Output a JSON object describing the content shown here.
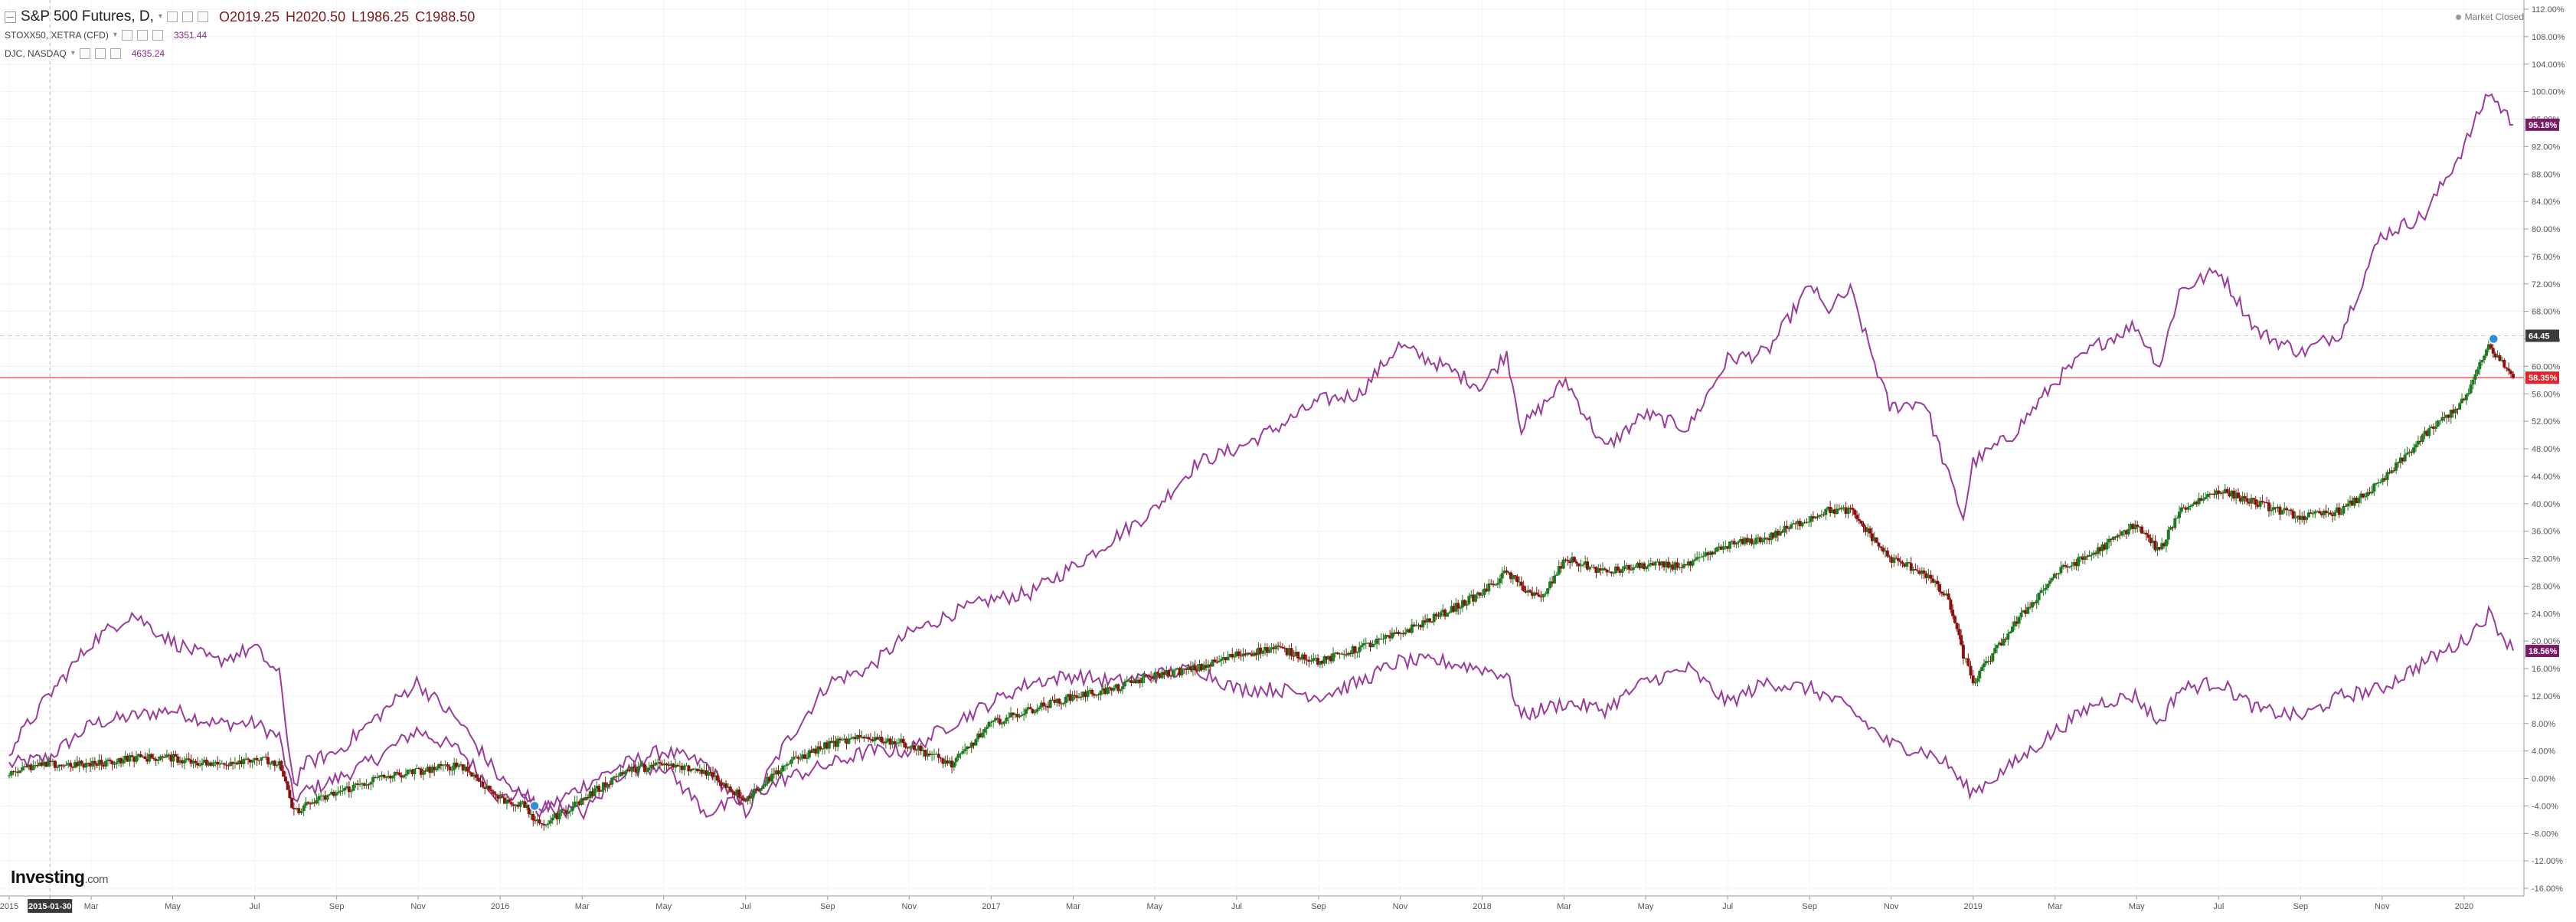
{
  "legend": {
    "main": {
      "name": "S&P 500 Futures, D,",
      "open": "O2019.25",
      "high": "H2020.50",
      "low": "L1986.25",
      "close": "C1988.50"
    },
    "series2": {
      "name": "STOXX50, XETRA (CFD)",
      "value": "3351.44"
    },
    "series3": {
      "name": "DJC, NASDAQ",
      "value": "4635.24"
    }
  },
  "market_status": "Market Closed",
  "watermark": {
    "brand": "Investing",
    "suffix": ".com"
  },
  "price_tags": {
    "high_tag": "64.45",
    "main": "58.35%",
    "upper_purple": "95.18%",
    "lower_purple": "18.56%"
  },
  "colors": {
    "up": "#1e7a1e",
    "down": "#8b1010",
    "purple": "#9a3c9a",
    "price_line": "#f28080",
    "tag_red": "#e8202a",
    "tag_purple": "#7a1a6a",
    "tag_dark": "#3a3a3a"
  },
  "chart_data": {
    "type": "line",
    "y_unit": "percent change",
    "ylim": [
      -16,
      112
    ],
    "y_ticks": [
      "112.00%",
      "108.00%",
      "104.00%",
      "100.00%",
      "96.00%",
      "92.00%",
      "88.00%",
      "84.00%",
      "80.00%",
      "76.00%",
      "72.00%",
      "68.00%",
      "64.00%",
      "60.00%",
      "56.00%",
      "52.00%",
      "48.00%",
      "44.00%",
      "40.00%",
      "36.00%",
      "32.00%",
      "28.00%",
      "24.00%",
      "20.00%",
      "16.00%",
      "12.00%",
      "8.00%",
      "4.00%",
      "0.00%",
      "-4.00%",
      "-8.00%",
      "-12.00%",
      "-16.00%"
    ],
    "x_ticks": [
      "2015",
      "2015-01-30",
      "Mar",
      "May",
      "Jul",
      "Sep",
      "Nov",
      "2016",
      "Mar",
      "May",
      "Jul",
      "Sep",
      "Nov",
      "2017",
      "Mar",
      "May",
      "Jul",
      "Sep",
      "Nov",
      "2018",
      "Mar",
      "May",
      "Jul",
      "Sep",
      "Nov",
      "2019",
      "Mar",
      "May",
      "Jul",
      "Sep",
      "Nov",
      "2020"
    ],
    "x_tick_times": [
      0.0,
      0.083,
      0.167,
      0.333,
      0.5,
      0.667,
      0.833,
      1.0,
      1.167,
      1.333,
      1.5,
      1.667,
      1.833,
      2.0,
      2.167,
      2.333,
      2.5,
      2.667,
      2.833,
      3.0,
      3.167,
      3.333,
      3.5,
      3.667,
      3.833,
      4.0,
      4.167,
      4.333,
      4.5,
      4.667,
      4.833,
      5.0
    ],
    "x_unit": "years since first tick (2015)",
    "grid": true,
    "series": [
      {
        "name": "DJC, NASDAQ",
        "kind": "line",
        "x": [
          0,
          0.08,
          0.17,
          0.25,
          0.33,
          0.42,
          0.5,
          0.55,
          0.58,
          0.6,
          0.67,
          0.75,
          0.83,
          0.92,
          1.0,
          1.05,
          1.08,
          1.17,
          1.25,
          1.33,
          1.42,
          1.5,
          1.58,
          1.67,
          1.75,
          1.83,
          1.92,
          2.0,
          2.08,
          2.17,
          2.25,
          2.33,
          2.42,
          2.5,
          2.58,
          2.67,
          2.75,
          2.83,
          2.92,
          3.0,
          3.05,
          3.08,
          3.12,
          3.17,
          3.25,
          3.33,
          3.42,
          3.5,
          3.58,
          3.67,
          3.7,
          3.75,
          3.83,
          3.9,
          3.95,
          3.98,
          4.0,
          4.08,
          4.17,
          4.25,
          4.33,
          4.38,
          4.42,
          4.5,
          4.58,
          4.67,
          4.75,
          4.83,
          4.92,
          5.0,
          5.05,
          5.1
        ],
        "y": [
          2,
          3,
          8,
          9,
          10,
          8,
          8,
          6,
          -3,
          -2,
          0,
          3,
          7,
          4,
          -3,
          -2,
          -5,
          -1,
          2,
          4,
          2,
          -5,
          5,
          14,
          16,
          21,
          24,
          26,
          27,
          31,
          35,
          39,
          46,
          48,
          51,
          55,
          56,
          63,
          60,
          57,
          62,
          51,
          54,
          58,
          48,
          53,
          51,
          61,
          62,
          72,
          68,
          71,
          54,
          55,
          44,
          38,
          46,
          50,
          58,
          63,
          66,
          60,
          71,
          74,
          65,
          62,
          65,
          79,
          82,
          92,
          100,
          95.2
        ]
      },
      {
        "name": "S&P 500 Futures",
        "kind": "candles",
        "x": [
          0,
          0.08,
          0.17,
          0.25,
          0.33,
          0.42,
          0.5,
          0.55,
          0.58,
          0.6,
          0.67,
          0.75,
          0.83,
          0.92,
          1.0,
          1.05,
          1.08,
          1.17,
          1.25,
          1.33,
          1.42,
          1.5,
          1.58,
          1.67,
          1.75,
          1.83,
          1.92,
          2.0,
          2.08,
          2.17,
          2.25,
          2.33,
          2.42,
          2.5,
          2.58,
          2.67,
          2.75,
          2.83,
          2.92,
          3.0,
          3.05,
          3.08,
          3.12,
          3.17,
          3.25,
          3.33,
          3.42,
          3.5,
          3.58,
          3.67,
          3.7,
          3.75,
          3.83,
          3.9,
          3.95,
          3.98,
          4.0,
          4.08,
          4.17,
          4.25,
          4.33,
          4.38,
          4.42,
          4.5,
          4.58,
          4.67,
          4.75,
          4.83,
          4.92,
          5.0,
          5.05,
          5.1
        ],
        "y": [
          1,
          2,
          2,
          3,
          3,
          2,
          3,
          2,
          -5,
          -4,
          -2,
          0,
          1,
          2,
          -3,
          -4,
          -7,
          -3,
          1,
          2,
          1,
          -3,
          2,
          5,
          6,
          5,
          2,
          8,
          10,
          12,
          13,
          15,
          16,
          18,
          19,
          17,
          19,
          21,
          24,
          27,
          30,
          28,
          26,
          32,
          30,
          31,
          31,
          34,
          35,
          38,
          39,
          39,
          32,
          30,
          26,
          18,
          14,
          22,
          30,
          33,
          37,
          33,
          39,
          42,
          40,
          38,
          39,
          43,
          50,
          55,
          63,
          58.35
        ]
      },
      {
        "name": "STOXX50, XETRA (CFD)",
        "kind": "line",
        "x": [
          0,
          0.08,
          0.17,
          0.25,
          0.33,
          0.42,
          0.5,
          0.55,
          0.58,
          0.6,
          0.67,
          0.75,
          0.83,
          0.92,
          1.0,
          1.05,
          1.08,
          1.17,
          1.25,
          1.33,
          1.42,
          1.5,
          1.58,
          1.67,
          1.75,
          1.83,
          1.92,
          2.0,
          2.08,
          2.17,
          2.25,
          2.33,
          2.42,
          2.5,
          2.58,
          2.67,
          2.75,
          2.83,
          2.92,
          3.0,
          3.05,
          3.08,
          3.12,
          3.17,
          3.25,
          3.33,
          3.42,
          3.5,
          3.58,
          3.67,
          3.7,
          3.75,
          3.83,
          3.9,
          3.95,
          3.98,
          4.0,
          4.08,
          4.17,
          4.25,
          4.33,
          4.38,
          4.42,
          4.5,
          4.58,
          4.67,
          4.75,
          4.83,
          4.92,
          5.0,
          5.05,
          5.1
        ],
        "y": [
          4,
          12,
          20,
          24,
          20,
          17,
          19,
          15,
          -1,
          2,
          4,
          9,
          14,
          8,
          0,
          -3,
          -4,
          -5,
          1,
          2,
          -5,
          -3,
          0,
          2,
          4,
          4,
          8,
          11,
          14,
          15,
          14,
          15,
          16,
          13,
          13,
          12,
          14,
          17,
          17,
          16,
          15,
          9,
          10,
          11,
          10,
          14,
          16,
          11,
          14,
          13,
          12,
          10,
          5,
          4,
          2,
          -1,
          -2,
          2,
          7,
          11,
          12,
          8,
          13,
          14,
          10,
          9,
          12,
          13,
          17,
          20,
          24,
          18.6
        ]
      }
    ]
  }
}
